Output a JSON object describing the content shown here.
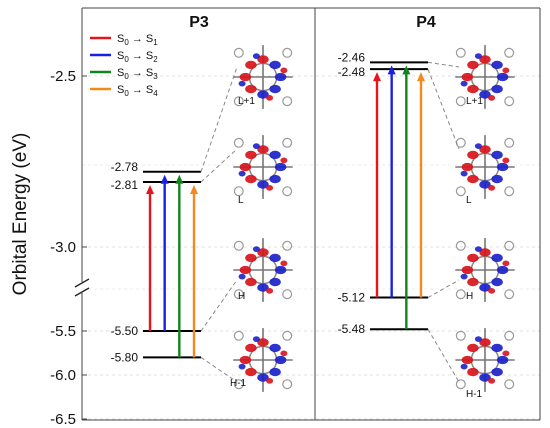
{
  "chart_data": {
    "type": "energy-level-diagram",
    "ylabel": "Orbital Energy (eV)",
    "y_ticks": [
      "-2.5",
      "-3.0",
      "-5.5",
      "-6.0",
      "-6.5"
    ],
    "axis_break": {
      "between": [
        -3.0,
        -5.5
      ]
    },
    "legend": [
      {
        "label_main": "S",
        "label_sub": "0",
        "arrow": " → S",
        "label_sub2": "1",
        "color": "#e8141a"
      },
      {
        "label_main": "S",
        "label_sub": "0",
        "arrow": " → S",
        "label_sub2": "2",
        "color": "#1a20e0"
      },
      {
        "label_main": "S",
        "label_sub": "0",
        "arrow": " → S",
        "label_sub2": "3",
        "color": "#10851c"
      },
      {
        "label_main": "S",
        "label_sub": "0",
        "arrow": " → S",
        "label_sub2": "4",
        "color": "#f5891e"
      }
    ],
    "panels": [
      {
        "title": "P3",
        "levels": [
          {
            "value": -2.78,
            "label": "-2.78",
            "orbital": "L+1"
          },
          {
            "value": -2.81,
            "label": "-2.81",
            "orbital": "L"
          },
          {
            "value": -5.5,
            "label": "-5.50",
            "orbital": "H"
          },
          {
            "value": -5.8,
            "label": "-5.80",
            "orbital": "H-1"
          }
        ],
        "transitions": [
          {
            "from": -5.5,
            "to": -2.81,
            "color": "#e8141a"
          },
          {
            "from": -5.5,
            "to": -2.78,
            "color": "#1a20e0"
          },
          {
            "from": -5.8,
            "to": -2.78,
            "color": "#10851c"
          },
          {
            "from": -5.8,
            "to": -2.81,
            "color": "#f5891e"
          }
        ]
      },
      {
        "title": "P4",
        "levels": [
          {
            "value": -2.46,
            "label": "-2.46",
            "orbital": "L+1"
          },
          {
            "value": -2.48,
            "label": "-2.48",
            "orbital": "L"
          },
          {
            "value": -5.12,
            "label": "-5.12",
            "orbital": "H"
          },
          {
            "value": -5.48,
            "label": "-5.48",
            "orbital": "H-1"
          }
        ],
        "transitions": [
          {
            "from": -5.12,
            "to": -2.48,
            "color": "#e8141a"
          },
          {
            "from": -5.12,
            "to": -2.46,
            "color": "#1a20e0"
          },
          {
            "from": -5.48,
            "to": -2.46,
            "color": "#10851c"
          },
          {
            "from": -5.12,
            "to": -2.48,
            "color": "#f5891e"
          }
        ]
      }
    ]
  }
}
